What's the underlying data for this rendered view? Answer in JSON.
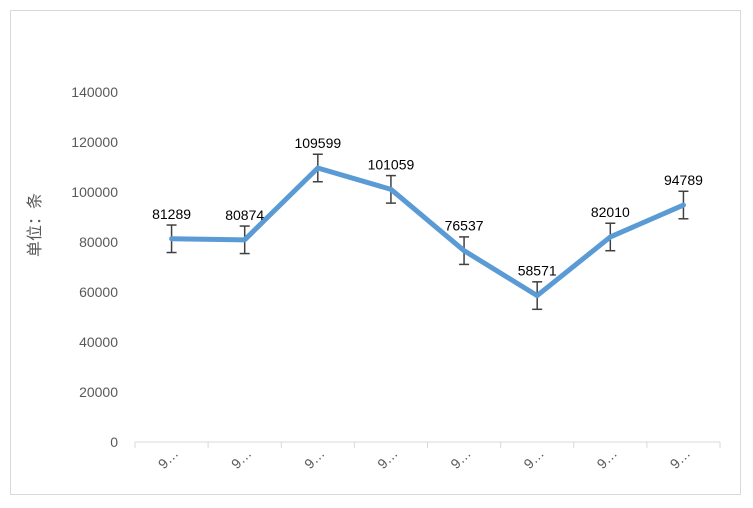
{
  "chart_data": {
    "type": "line",
    "ylabel": "单位：条",
    "ylim": [
      0,
      140000
    ],
    "yticks": [
      "0",
      "20000",
      "40000",
      "60000",
      "80000",
      "100000",
      "120000",
      "140000"
    ],
    "categories": [
      "9…",
      "9…",
      "9…",
      "9…",
      "9…",
      "9…",
      "9…",
      "9…"
    ],
    "series": [
      {
        "values": [
          81289,
          80874,
          109599,
          101059,
          76537,
          58571,
          82010,
          94789
        ],
        "error": [
          5500,
          5500,
          5500,
          5500,
          5500,
          5500,
          5500,
          5500
        ]
      }
    ],
    "data_labels": [
      "81289",
      "80874",
      "109599",
      "101059",
      "76537",
      "58571",
      "82010",
      "94789"
    ],
    "line_color": "#5b9bd5",
    "errorbar_color": "#404040",
    "grid": false,
    "legend": "none"
  }
}
